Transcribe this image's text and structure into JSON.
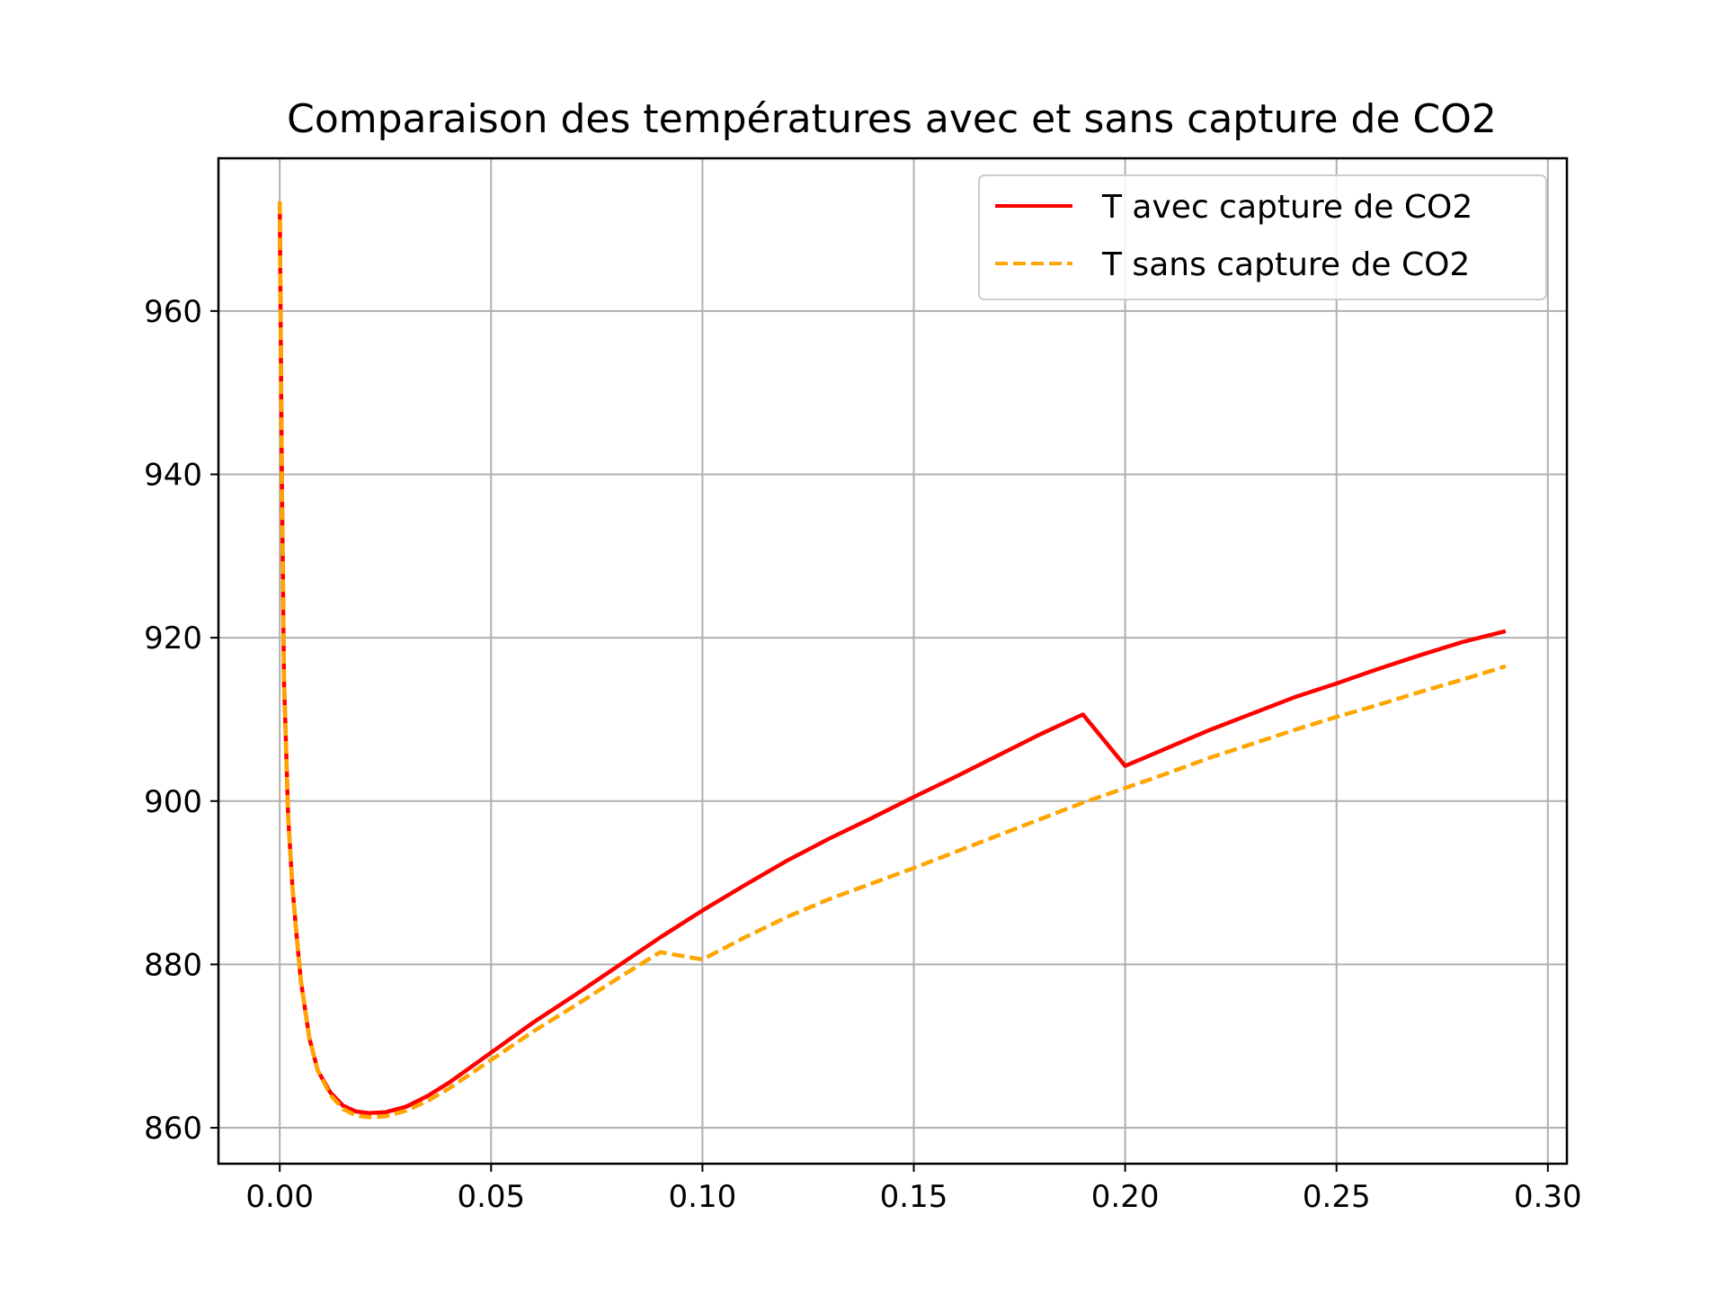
{
  "chart_data": {
    "type": "line",
    "title": "Comparaison des températures avec et sans capture de CO2",
    "xlabel": "",
    "ylabel": "",
    "xlim": [
      -0.0145,
      0.3045
    ],
    "ylim": [
      855.6,
      978.7
    ],
    "xticks": [
      0.0,
      0.05,
      0.1,
      0.15,
      0.2,
      0.25,
      0.3
    ],
    "xtick_labels": [
      "0.00",
      "0.05",
      "0.10",
      "0.15",
      "0.20",
      "0.25",
      "0.30"
    ],
    "yticks": [
      860,
      880,
      900,
      920,
      940,
      960
    ],
    "ytick_labels": [
      "860",
      "880",
      "900",
      "920",
      "940",
      "960"
    ],
    "grid": true,
    "legend_position": "upper-right",
    "series": [
      {
        "name": "T avec capture de CO2",
        "color": "#ff0000",
        "style": "solid",
        "points": [
          [
            0.0,
            973.4
          ],
          [
            0.0005,
            940.0
          ],
          [
            0.001,
            915.0
          ],
          [
            0.002,
            898.0
          ],
          [
            0.003,
            889.5
          ],
          [
            0.004,
            883.5
          ],
          [
            0.005,
            878.0
          ],
          [
            0.007,
            871.0
          ],
          [
            0.009,
            867.0
          ],
          [
            0.012,
            864.3
          ],
          [
            0.015,
            862.7
          ],
          [
            0.018,
            862.0
          ],
          [
            0.021,
            861.8
          ],
          [
            0.025,
            861.9
          ],
          [
            0.03,
            862.6
          ],
          [
            0.035,
            863.9
          ],
          [
            0.04,
            865.5
          ],
          [
            0.05,
            869.2
          ],
          [
            0.06,
            872.9
          ],
          [
            0.07,
            876.3
          ],
          [
            0.08,
            879.8
          ],
          [
            0.09,
            883.3
          ],
          [
            0.1,
            886.6
          ],
          [
            0.11,
            889.7
          ],
          [
            0.12,
            892.7
          ],
          [
            0.13,
            895.4
          ],
          [
            0.14,
            897.9
          ],
          [
            0.15,
            900.5
          ],
          [
            0.16,
            903.0
          ],
          [
            0.17,
            905.6
          ],
          [
            0.18,
            908.2
          ],
          [
            0.19,
            910.6
          ],
          [
            0.2,
            904.3
          ],
          [
            0.21,
            906.5
          ],
          [
            0.22,
            908.7
          ],
          [
            0.23,
            910.7
          ],
          [
            0.24,
            912.7
          ],
          [
            0.25,
            914.4
          ],
          [
            0.26,
            916.2
          ],
          [
            0.27,
            917.9
          ],
          [
            0.28,
            919.5
          ],
          [
            0.29,
            920.8
          ]
        ]
      },
      {
        "name": "T sans capture de CO2",
        "color": "#ffa500",
        "style": "dashed",
        "points": [
          [
            0.0,
            973.4
          ],
          [
            0.0005,
            940.0
          ],
          [
            0.001,
            915.0
          ],
          [
            0.002,
            898.0
          ],
          [
            0.003,
            889.5
          ],
          [
            0.004,
            883.5
          ],
          [
            0.005,
            878.0
          ],
          [
            0.007,
            871.0
          ],
          [
            0.009,
            867.0
          ],
          [
            0.012,
            864.0
          ],
          [
            0.015,
            862.3
          ],
          [
            0.018,
            861.5
          ],
          [
            0.021,
            861.3
          ],
          [
            0.025,
            861.4
          ],
          [
            0.03,
            862.1
          ],
          [
            0.035,
            863.3
          ],
          [
            0.04,
            864.8
          ],
          [
            0.05,
            868.3
          ],
          [
            0.06,
            871.8
          ],
          [
            0.07,
            875.0
          ],
          [
            0.08,
            878.3
          ],
          [
            0.09,
            881.5
          ],
          [
            0.1,
            880.6
          ],
          [
            0.11,
            883.3
          ],
          [
            0.12,
            885.8
          ],
          [
            0.13,
            888.0
          ],
          [
            0.14,
            889.9
          ],
          [
            0.15,
            891.8
          ],
          [
            0.16,
            893.8
          ],
          [
            0.17,
            895.8
          ],
          [
            0.18,
            897.8
          ],
          [
            0.19,
            899.8
          ],
          [
            0.2,
            901.6
          ],
          [
            0.21,
            903.4
          ],
          [
            0.22,
            905.3
          ],
          [
            0.23,
            907.0
          ],
          [
            0.24,
            908.7
          ],
          [
            0.25,
            910.3
          ],
          [
            0.26,
            911.8
          ],
          [
            0.27,
            913.4
          ],
          [
            0.28,
            914.9
          ],
          [
            0.29,
            916.5
          ]
        ]
      }
    ]
  }
}
